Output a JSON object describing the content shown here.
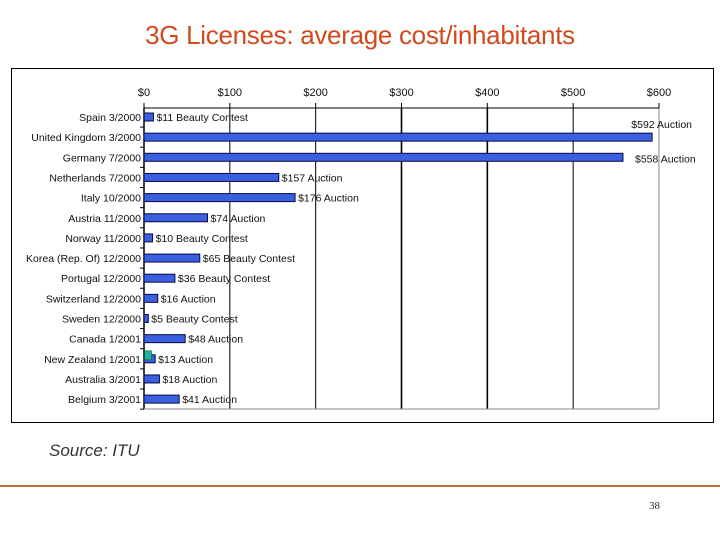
{
  "slide": {
    "title": "3G Licenses: average cost/inhabitants",
    "source": "Source: ITU",
    "page_number": "38"
  },
  "colors": {
    "title": "#D04A1E",
    "bar_fill": "#3A5FE0",
    "bar_stroke": "#0A0A40",
    "highlight": "#1FB39A",
    "footer_line": "#C0703E"
  },
  "chart_data": {
    "type": "bar",
    "orientation": "horizontal",
    "title": "3G Licenses: average cost/inhabitants",
    "xlabel": "",
    "ylabel": "",
    "xlim": [
      0,
      600
    ],
    "x_ticks": [
      "$0",
      "$100",
      "$200",
      "$300",
      "$400",
      "$500",
      "$600"
    ],
    "x_axis_position": "top",
    "grid": true,
    "categories": [
      "Spain 3/2000",
      "United Kingdom 3/2000",
      "Germany 7/2000",
      "Netherlands 7/2000",
      "Italy 10/2000",
      "Austria 11/2000",
      "Norway  11/2000",
      "Korea (Rep. Of) 12/2000",
      "Portugal  12/2000",
      "Switzerland  12/2000",
      "Sweden 12/2000",
      "Canada  1/2001",
      "New Zealand 1/2001",
      "Australia 3/2001",
      "Belgium 3/2001"
    ],
    "values": [
      11,
      592,
      558,
      157,
      176,
      74,
      10,
      65,
      36,
      16,
      5,
      48,
      13,
      18,
      41
    ],
    "methods": [
      "Beauty Contest",
      "Auction",
      "Auction",
      "Auction",
      "Auction",
      "Auction",
      "Beauty Contest",
      "Beauty Contest",
      "Beauty Contest",
      "Auction",
      "Beauty Contest",
      "Auction",
      "Auction",
      "Auction",
      "Auction"
    ],
    "data_labels": [
      "$11 Beauty Contest",
      "$592 Auction",
      "$558 Auction",
      "$157 Auction",
      "$176 Auction",
      "$74 Auction",
      "$10 Beauty Contest",
      "$65 Beauty Contest",
      "$36 Beauty Contest",
      "$16 Auction",
      "$5 Beauty Contest",
      "$48 Auction",
      "$13 Auction",
      "$18 Auction",
      "$41 Auction"
    ]
  }
}
